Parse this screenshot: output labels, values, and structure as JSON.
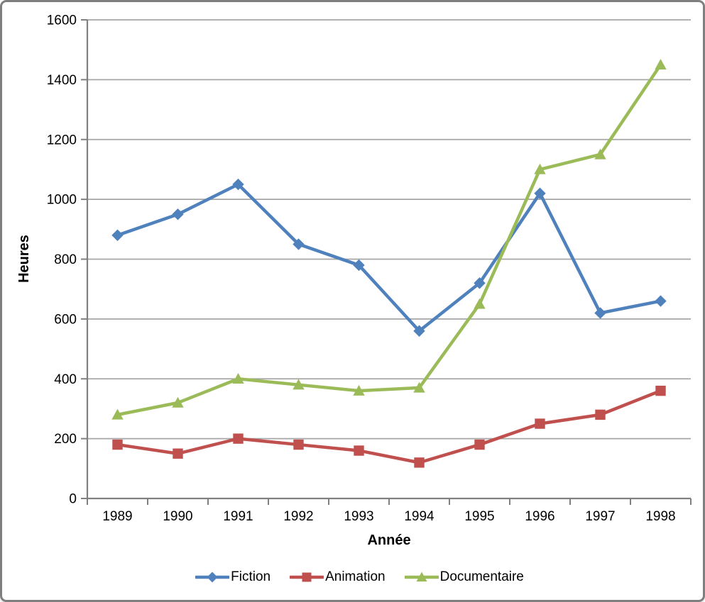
{
  "window": {
    "background": "#FFFFFF",
    "border_color": "#7F7F7F"
  },
  "colors": {
    "axis": "#808080",
    "gridline": "#A6A6A6",
    "tick_text": "#000000",
    "title_text": "#000000"
  },
  "chart_data": {
    "type": "line",
    "xlabel": "Année",
    "ylabel": "Heures",
    "categories": [
      "1989",
      "1990",
      "1991",
      "1992",
      "1993",
      "1994",
      "1995",
      "1996",
      "1997",
      "1998"
    ],
    "ylim": [
      0,
      1600
    ],
    "ytick_step": 200,
    "ytick_labels": [
      "0",
      "200",
      "400",
      "600",
      "800",
      "1000",
      "1200",
      "1400",
      "1600"
    ],
    "grid": true,
    "legend_position": "bottom",
    "series": [
      {
        "name": "Fiction",
        "marker": "diamond",
        "color": "#4F81BD",
        "values": [
          880,
          950,
          1050,
          850,
          780,
          560,
          720,
          1020,
          620,
          660
        ]
      },
      {
        "name": "Animation",
        "marker": "square",
        "color": "#C0504D",
        "values": [
          180,
          150,
          200,
          180,
          160,
          120,
          180,
          250,
          280,
          360
        ]
      },
      {
        "name": "Documentaire",
        "marker": "triangle",
        "color": "#9BBB59",
        "values": [
          280,
          320,
          400,
          380,
          360,
          370,
          650,
          1100,
          1150,
          1450
        ]
      }
    ]
  }
}
